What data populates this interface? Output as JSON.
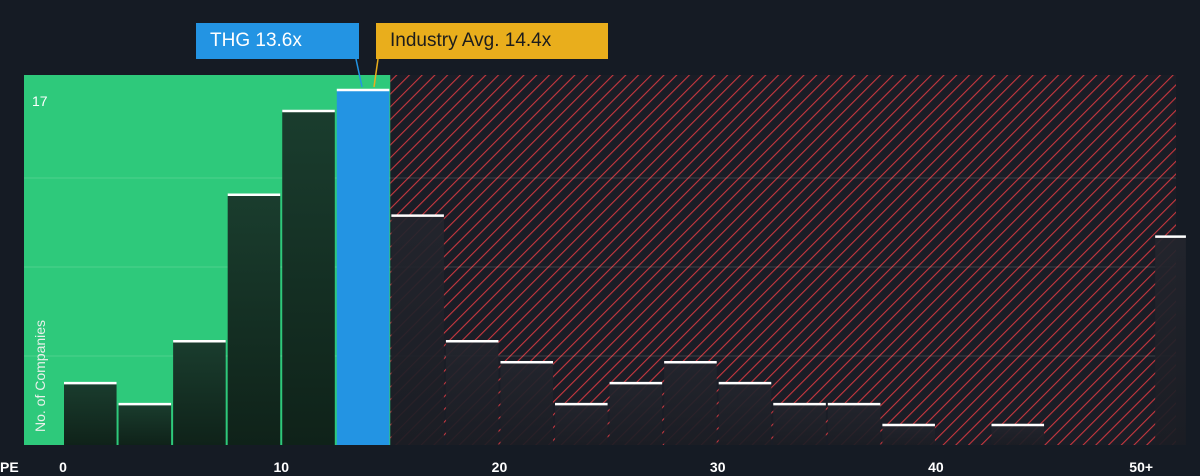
{
  "chart_data": {
    "type": "bar",
    "x_axis_label": "PE",
    "ylabel": "No. of Companies",
    "x_ticks": [
      "0",
      "10",
      "20",
      "30",
      "40",
      "50+"
    ],
    "y_max_label": "17",
    "xlim": [
      0,
      51
    ],
    "ylim": [
      0,
      17
    ],
    "bins": [
      {
        "start": 0,
        "end": 2.5,
        "value": 3
      },
      {
        "start": 2.5,
        "end": 5,
        "value": 2
      },
      {
        "start": 5,
        "end": 7.5,
        "value": 5
      },
      {
        "start": 7.5,
        "end": 10,
        "value": 12
      },
      {
        "start": 10,
        "end": 12.5,
        "value": 16
      },
      {
        "start": 12.5,
        "end": 15,
        "value": 17
      },
      {
        "start": 15,
        "end": 17.5,
        "value": 11
      },
      {
        "start": 17.5,
        "end": 20,
        "value": 5
      },
      {
        "start": 20,
        "end": 22.5,
        "value": 4
      },
      {
        "start": 22.5,
        "end": 25,
        "value": 2
      },
      {
        "start": 25,
        "end": 27.5,
        "value": 3
      },
      {
        "start": 27.5,
        "end": 30,
        "value": 4
      },
      {
        "start": 30,
        "end": 32.5,
        "value": 3
      },
      {
        "start": 32.5,
        "end": 35,
        "value": 2
      },
      {
        "start": 35,
        "end": 37.5,
        "value": 2
      },
      {
        "start": 37.5,
        "end": 40,
        "value": 1
      },
      {
        "start": 40,
        "end": 42.5,
        "value": 0
      },
      {
        "start": 42.5,
        "end": 45,
        "value": 1
      },
      {
        "start": 45,
        "end": 47.5,
        "value": 0
      },
      {
        "start": 47.5,
        "end": 50,
        "value": 0
      },
      {
        "start": 50,
        "end": 51.5,
        "value": 10
      }
    ],
    "company": {
      "label": "THG 13.6x",
      "value": 13.6
    },
    "industry_avg": {
      "label": "Industry Avg. 14.4x",
      "value": 14.4
    },
    "colors": {
      "background": "#151b24",
      "undervalued_zone": "#2ec97b",
      "overvalued_hatch": "#c8373f",
      "company": "#2394e3",
      "industry": "#e9ae1c",
      "bar_top": "#ffffff"
    }
  }
}
